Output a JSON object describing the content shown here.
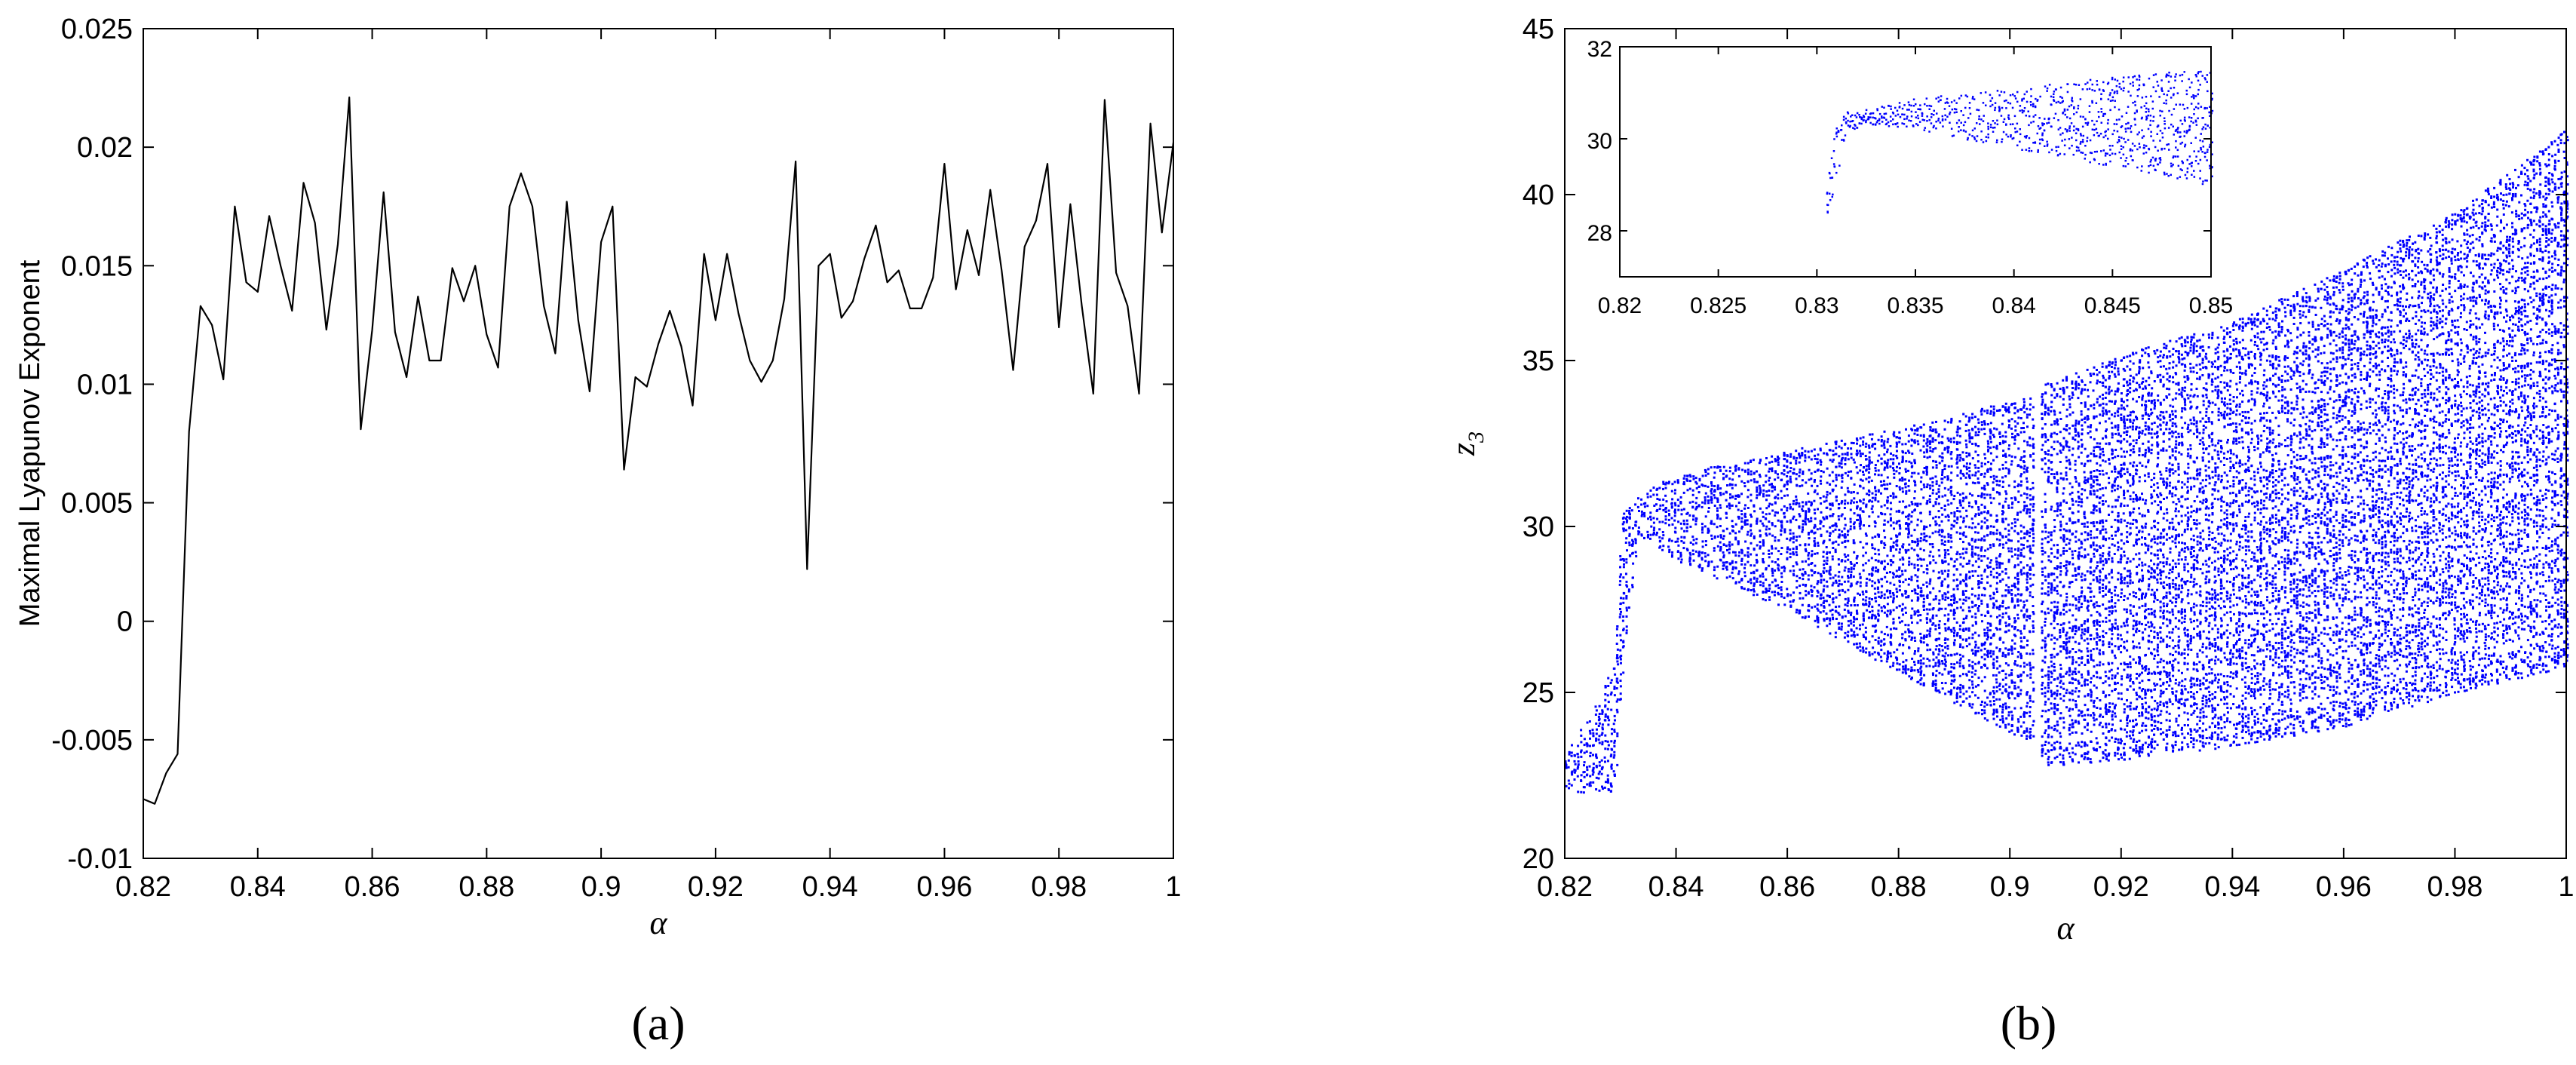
{
  "chart_data": [
    {
      "type": "line",
      "panel_label": "a",
      "xlabel": "α",
      "ylabel": "Maximal Lyapunov Exponent",
      "xlim": [
        0.82,
        1.0
      ],
      "ylim": [
        -0.01,
        0.025
      ],
      "x_ticks": [
        "0.82",
        "0.84",
        "0.86",
        "0.88",
        "0.9",
        "0.92",
        "0.94",
        "0.96",
        "0.98",
        "1"
      ],
      "y_ticks": [
        "-0.01",
        "-0.005",
        "0",
        "0.005",
        "0.01",
        "0.015",
        "0.02",
        "0.025"
      ],
      "grid": false,
      "line_color": "#000000",
      "series": [
        {
          "x": [
            0.82,
            0.822,
            0.824,
            0.826,
            0.828,
            0.83,
            0.832,
            0.834,
            0.836,
            0.838,
            0.84,
            0.842,
            0.844,
            0.846,
            0.848,
            0.85,
            0.852,
            0.854,
            0.856,
            0.858,
            0.86,
            0.862,
            0.864,
            0.866,
            0.868,
            0.87,
            0.872,
            0.874,
            0.876,
            0.878,
            0.88,
            0.882,
            0.884,
            0.886,
            0.888,
            0.89,
            0.892,
            0.894,
            0.896,
            0.898,
            0.9,
            0.902,
            0.904,
            0.906,
            0.908,
            0.91,
            0.912,
            0.914,
            0.916,
            0.918,
            0.92,
            0.922,
            0.924,
            0.926,
            0.928,
            0.93,
            0.932,
            0.934,
            0.936,
            0.938,
            0.94,
            0.942,
            0.944,
            0.946,
            0.948,
            0.95,
            0.952,
            0.954,
            0.956,
            0.958,
            0.96,
            0.962,
            0.964,
            0.966,
            0.968,
            0.97,
            0.972,
            0.974,
            0.976,
            0.978,
            0.98,
            0.982,
            0.984,
            0.986,
            0.988,
            0.99,
            0.992,
            0.994,
            0.996,
            0.998,
            1.0
          ],
          "y": [
            -0.0075,
            -0.0077,
            -0.0064,
            -0.0056,
            0.008,
            0.0133,
            0.0125,
            0.0102,
            0.0175,
            0.0143,
            0.0139,
            0.0171,
            0.015,
            0.0131,
            0.0185,
            0.0168,
            0.0123,
            0.0159,
            0.0221,
            0.0081,
            0.0123,
            0.0181,
            0.0122,
            0.0103,
            0.0137,
            0.011,
            0.011,
            0.0149,
            0.0135,
            0.015,
            0.0121,
            0.0107,
            0.0175,
            0.0189,
            0.0175,
            0.0133,
            0.0113,
            0.0177,
            0.0127,
            0.0097,
            0.016,
            0.0175,
            0.0064,
            0.0103,
            0.0099,
            0.0117,
            0.0131,
            0.0116,
            0.0091,
            0.0155,
            0.0127,
            0.0155,
            0.013,
            0.011,
            0.0101,
            0.011,
            0.0136,
            0.0194,
            0.0022,
            0.015,
            0.0155,
            0.0128,
            0.0135,
            0.0153,
            0.0167,
            0.0143,
            0.0148,
            0.0132,
            0.0132,
            0.0145,
            0.0193,
            0.014,
            0.0165,
            0.0146,
            0.0182,
            0.0148,
            0.0106,
            0.0158,
            0.0169,
            0.0193,
            0.0124,
            0.0176,
            0.0133,
            0.0096,
            0.022,
            0.0147,
            0.0133,
            0.0096,
            0.021,
            0.0164,
            0.0202
          ]
        }
      ]
    },
    {
      "type": "scatter",
      "panel_label": "b",
      "xlabel": "α",
      "ylabel": "z",
      "ylabel_subscript": "3",
      "xlim": [
        0.82,
        1.0
      ],
      "ylim": [
        20,
        45
      ],
      "x_ticks": [
        "0.82",
        "0.84",
        "0.86",
        "0.88",
        "0.9",
        "0.92",
        "0.94",
        "0.96",
        "0.98",
        "1"
      ],
      "y_ticks": [
        "20",
        "25",
        "30",
        "35",
        "40",
        "45"
      ],
      "grid": false,
      "point_color": "#0000ff",
      "bifurcation_envelope": {
        "alpha": [
          0.82,
          0.825,
          0.829,
          0.83,
          0.833,
          0.84,
          0.86,
          0.88,
          0.9,
          0.905,
          0.906,
          0.92,
          0.94,
          0.96,
          0.98,
          1.0
        ],
        "z_lower": [
          22.0,
          22.0,
          22.0,
          25.0,
          29.8,
          29.0,
          27.5,
          25.6,
          23.8,
          23.5,
          22.8,
          23.0,
          23.4,
          24.0,
          25.0,
          25.8
        ],
        "z_upper": [
          23.2,
          24.5,
          26.0,
          30.4,
          31.0,
          31.6,
          32.3,
          33.0,
          33.8,
          34.0,
          34.3,
          35.2,
          36.2,
          37.8,
          39.5,
          42.0
        ]
      },
      "inset": {
        "xlim": [
          0.82,
          0.85
        ],
        "ylim": [
          27,
          32
        ],
        "x_ticks": [
          "0.82",
          "0.825",
          "0.83",
          "0.835",
          "0.84",
          "0.845",
          "0.85"
        ],
        "y_ticks": [
          "28",
          "30",
          "32"
        ],
        "bifurcation_envelope": {
          "alpha": [
            0.8305,
            0.831,
            0.8315,
            0.833,
            0.835,
            0.8375,
            0.84,
            0.8425,
            0.845,
            0.8475,
            0.85
          ],
          "z_lower": [
            28.3,
            29.2,
            30.2,
            30.3,
            30.2,
            30.0,
            29.8,
            29.6,
            29.4,
            29.2,
            29.0
          ],
          "z_upper": [
            29.7,
            30.4,
            30.6,
            30.7,
            30.9,
            31.0,
            31.1,
            31.25,
            31.35,
            31.45,
            31.55
          ]
        }
      }
    }
  ],
  "captions": {
    "a": "(a)",
    "b": "(b)"
  }
}
